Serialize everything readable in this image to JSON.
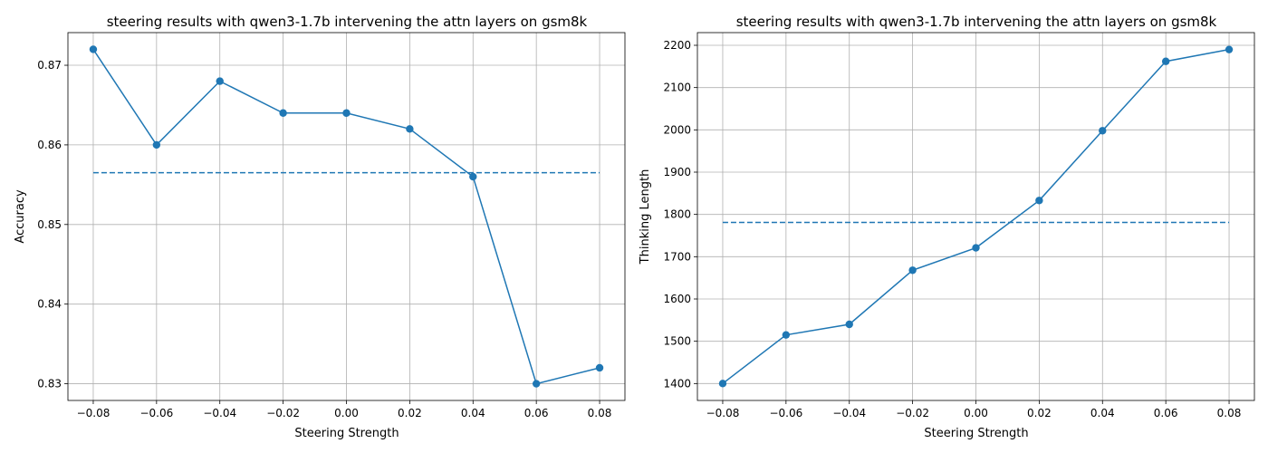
{
  "chart_data": [
    {
      "type": "line",
      "title": "steering results with qwen3-1.7b intervening the attn layers on gsm8k",
      "xlabel": "Steering Strength",
      "ylabel": "Accuracy",
      "x": [
        -0.08,
        -0.06,
        -0.04,
        -0.02,
        0.0,
        0.02,
        0.04,
        0.06,
        0.08
      ],
      "values": [
        0.872,
        0.86,
        0.868,
        0.864,
        0.864,
        0.862,
        0.856,
        0.83,
        0.832
      ],
      "baseline": 0.8565,
      "xlim": [
        -0.088,
        0.088
      ],
      "ylim": [
        0.8279,
        0.8741
      ],
      "xticks": [
        -0.08,
        -0.06,
        -0.04,
        -0.02,
        0.0,
        0.02,
        0.04,
        0.06,
        0.08
      ],
      "xtick_labels": [
        "−0.08",
        "−0.06",
        "−0.04",
        "−0.02",
        "0.00",
        "0.02",
        "0.04",
        "0.06",
        "0.08"
      ],
      "yticks": [
        0.83,
        0.84,
        0.85,
        0.86,
        0.87
      ],
      "ytick_labels": [
        "0.83",
        "0.84",
        "0.85",
        "0.86",
        "0.87"
      ],
      "grid": true
    },
    {
      "type": "line",
      "title": "steering results with qwen3-1.7b intervening the attn layers on gsm8k",
      "xlabel": "Steering Strength",
      "ylabel": "Thinking Length",
      "x": [
        -0.08,
        -0.06,
        -0.04,
        -0.02,
        0.0,
        0.02,
        0.04,
        0.06,
        0.08
      ],
      "values": [
        1400,
        1515,
        1540,
        1668,
        1721,
        1833,
        1998,
        2162,
        2190
      ],
      "baseline": 1781,
      "xlim": [
        -0.088,
        0.088
      ],
      "ylim": [
        1360,
        2230
      ],
      "xticks": [
        -0.08,
        -0.06,
        -0.04,
        -0.02,
        0.0,
        0.02,
        0.04,
        0.06,
        0.08
      ],
      "xtick_labels": [
        "−0.08",
        "−0.06",
        "−0.04",
        "−0.02",
        "0.00",
        "0.02",
        "0.04",
        "0.06",
        "0.08"
      ],
      "yticks": [
        1400,
        1500,
        1600,
        1700,
        1800,
        1900,
        2000,
        2100,
        2200
      ],
      "ytick_labels": [
        "1400",
        "1500",
        "1600",
        "1700",
        "1800",
        "1900",
        "2000",
        "2100",
        "2200"
      ],
      "grid": true
    }
  ]
}
